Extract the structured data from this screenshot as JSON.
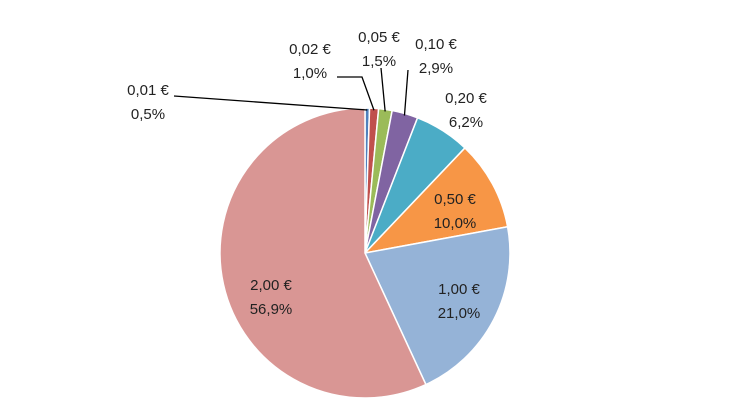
{
  "chart_data": {
    "type": "pie",
    "title": "",
    "slices": [
      {
        "name": "0,01 €",
        "pct_label": "0,5%",
        "value": 0.5,
        "color": "#4f81bd"
      },
      {
        "name": "0,02 €",
        "pct_label": "1,0%",
        "value": 1.0,
        "color": "#c0504d"
      },
      {
        "name": "0,05 €",
        "pct_label": "1,5%",
        "value": 1.5,
        "color": "#9bbb59"
      },
      {
        "name": "0,10 €",
        "pct_label": "2,9%",
        "value": 2.9,
        "color": "#8064a2"
      },
      {
        "name": "0,20 €",
        "pct_label": "6,2%",
        "value": 6.2,
        "color": "#4bacc6"
      },
      {
        "name": "0,50 €",
        "pct_label": "10,0%",
        "value": 10.0,
        "color": "#f79646"
      },
      {
        "name": "1,00 €",
        "pct_label": "21,0%",
        "value": 21.0,
        "color": "#95b3d7"
      },
      {
        "name": "2,00 €",
        "pct_label": "56,9%",
        "value": 56.9,
        "color": "#d99694"
      }
    ],
    "start_angle": "12 o'clock",
    "direction": "clockwise",
    "legend": "none"
  }
}
